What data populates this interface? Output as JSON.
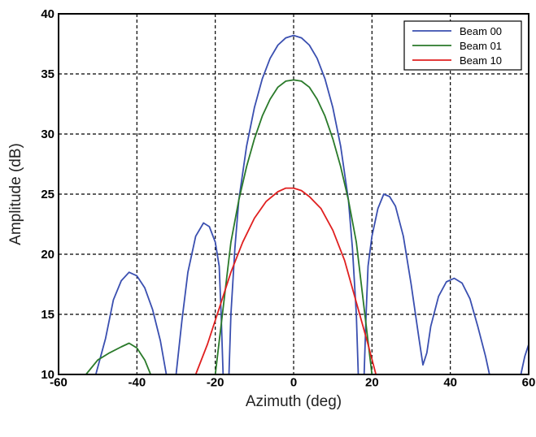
{
  "chart_data": {
    "type": "line",
    "title": "",
    "xlabel": "Azimuth (deg)",
    "ylabel": "Amplitude (dB)",
    "xlim": [
      -60,
      60
    ],
    "ylim": [
      10,
      40
    ],
    "xticks": [
      -60,
      -40,
      -20,
      0,
      20,
      40,
      60
    ],
    "yticks": [
      10,
      15,
      20,
      25,
      30,
      35,
      40
    ],
    "grid": true,
    "legend_position": "top-right",
    "series": [
      {
        "name": "Beam 00",
        "color": "#3a4fb0",
        "segments": [
          [
            [
              -50.5,
              10
            ],
            [
              -48,
              13
            ],
            [
              -46,
              16.2
            ],
            [
              -44,
              17.8
            ],
            [
              -42,
              18.5
            ],
            [
              -40,
              18.2
            ],
            [
              -38,
              17.2
            ],
            [
              -36,
              15.4
            ],
            [
              -34,
              12.8
            ],
            [
              -32.5,
              10
            ]
          ],
          [
            [
              -30,
              10
            ],
            [
              -28.5,
              14.5
            ],
            [
              -27,
              18.5
            ],
            [
              -25,
              21.5
            ],
            [
              -23,
              22.6
            ],
            [
              -21.5,
              22.3
            ],
            [
              -20,
              21
            ],
            [
              -19,
              19
            ],
            [
              -18.5,
              15
            ],
            [
              -18,
              10
            ]
          ],
          [
            [
              -16.5,
              10
            ],
            [
              -16,
              15
            ],
            [
              -15,
              20.5
            ],
            [
              -14,
              24.5
            ],
            [
              -12,
              29
            ],
            [
              -10,
              32.2
            ],
            [
              -8,
              34.6
            ],
            [
              -6,
              36.3
            ],
            [
              -4,
              37.4
            ],
            [
              -2,
              38
            ],
            [
              0,
              38.2
            ],
            [
              2,
              38
            ],
            [
              4,
              37.4
            ],
            [
              6,
              36.3
            ],
            [
              8,
              34.6
            ],
            [
              10,
              32.2
            ],
            [
              12,
              29
            ],
            [
              14,
              24.5
            ],
            [
              15,
              20.5
            ],
            [
              16,
              15
            ],
            [
              16.5,
              10
            ]
          ],
          [
            [
              18,
              10
            ],
            [
              18.5,
              15
            ],
            [
              19,
              19
            ],
            [
              20,
              21.5
            ],
            [
              21.5,
              23.8
            ],
            [
              23,
              25
            ],
            [
              24.5,
              24.8
            ],
            [
              26,
              24
            ],
            [
              28,
              21.5
            ],
            [
              30,
              17.5
            ],
            [
              32,
              13
            ],
            [
              33,
              10.8
            ],
            [
              34,
              11.8
            ],
            [
              35,
              14
            ],
            [
              37,
              16.5
            ],
            [
              39,
              17.7
            ],
            [
              41,
              18
            ],
            [
              43,
              17.6
            ],
            [
              45,
              16.3
            ],
            [
              47,
              14
            ],
            [
              49,
              11.5
            ],
            [
              50,
              10
            ]
          ],
          [
            [
              58,
              10
            ],
            [
              59,
              11.5
            ],
            [
              60,
              12.5
            ]
          ]
        ]
      },
      {
        "name": "Beam 01",
        "color": "#2a7a2a",
        "segments": [
          [
            [
              -53,
              10
            ],
            [
              -50,
              11.2
            ],
            [
              -47,
              11.8
            ],
            [
              -44,
              12.3
            ],
            [
              -42,
              12.6
            ],
            [
              -40,
              12.2
            ],
            [
              -38,
              11.2
            ],
            [
              -36.5,
              10
            ]
          ],
          [
            [
              -20,
              10
            ],
            [
              -18,
              15.5
            ],
            [
              -16,
              21
            ],
            [
              -14,
              24.5
            ],
            [
              -12,
              27.3
            ],
            [
              -10,
              29.6
            ],
            [
              -8,
              31.5
            ],
            [
              -6,
              32.9
            ],
            [
              -4,
              33.9
            ],
            [
              -2,
              34.4
            ],
            [
              0,
              34.5
            ],
            [
              2,
              34.4
            ],
            [
              4,
              33.9
            ],
            [
              6,
              32.9
            ],
            [
              8,
              31.5
            ],
            [
              10,
              29.6
            ],
            [
              12,
              27.3
            ],
            [
              14,
              24.5
            ],
            [
              16,
              21
            ],
            [
              18,
              15.5
            ],
            [
              20,
              10
            ]
          ]
        ]
      },
      {
        "name": "Beam 10",
        "color": "#e02020",
        "segments": [
          [
            [
              -25,
              10
            ],
            [
              -22,
              12.5
            ],
            [
              -19,
              15.5
            ],
            [
              -16,
              18.5
            ],
            [
              -13,
              21
            ],
            [
              -10,
              23
            ],
            [
              -7,
              24.4
            ],
            [
              -4,
              25.2
            ],
            [
              -2,
              25.5
            ],
            [
              0,
              25.5
            ],
            [
              2,
              25.3
            ],
            [
              4,
              24.8
            ],
            [
              7,
              23.8
            ],
            [
              10,
              22
            ],
            [
              13,
              19.5
            ],
            [
              16,
              16
            ],
            [
              19,
              12.5
            ],
            [
              21,
              10
            ]
          ]
        ]
      }
    ]
  }
}
